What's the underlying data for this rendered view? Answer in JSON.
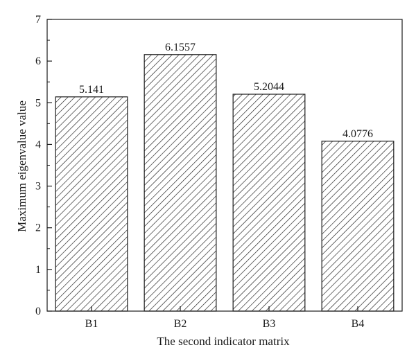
{
  "chart_data": {
    "type": "bar",
    "title": "",
    "xlabel": "The second indicator matrix",
    "ylabel": "Maximum eigenvalue value",
    "categories": [
      "B1",
      "B2",
      "B3",
      "B4"
    ],
    "values": [
      5.141,
      6.1557,
      5.2044,
      4.0776
    ],
    "value_labels": [
      "5.141",
      "6.1557",
      "5.2044",
      "4.0776"
    ],
    "ylim": [
      0,
      7
    ],
    "yticks": [
      "0",
      "1",
      "2",
      "3",
      "4",
      "5",
      "6",
      "7"
    ],
    "grid": false,
    "legend": "none",
    "bar_fill": "diagonal-hatch",
    "colors": {
      "stroke": "#1a1a1a",
      "hatch": "#1a1a1a",
      "background": "#ffffff"
    }
  }
}
